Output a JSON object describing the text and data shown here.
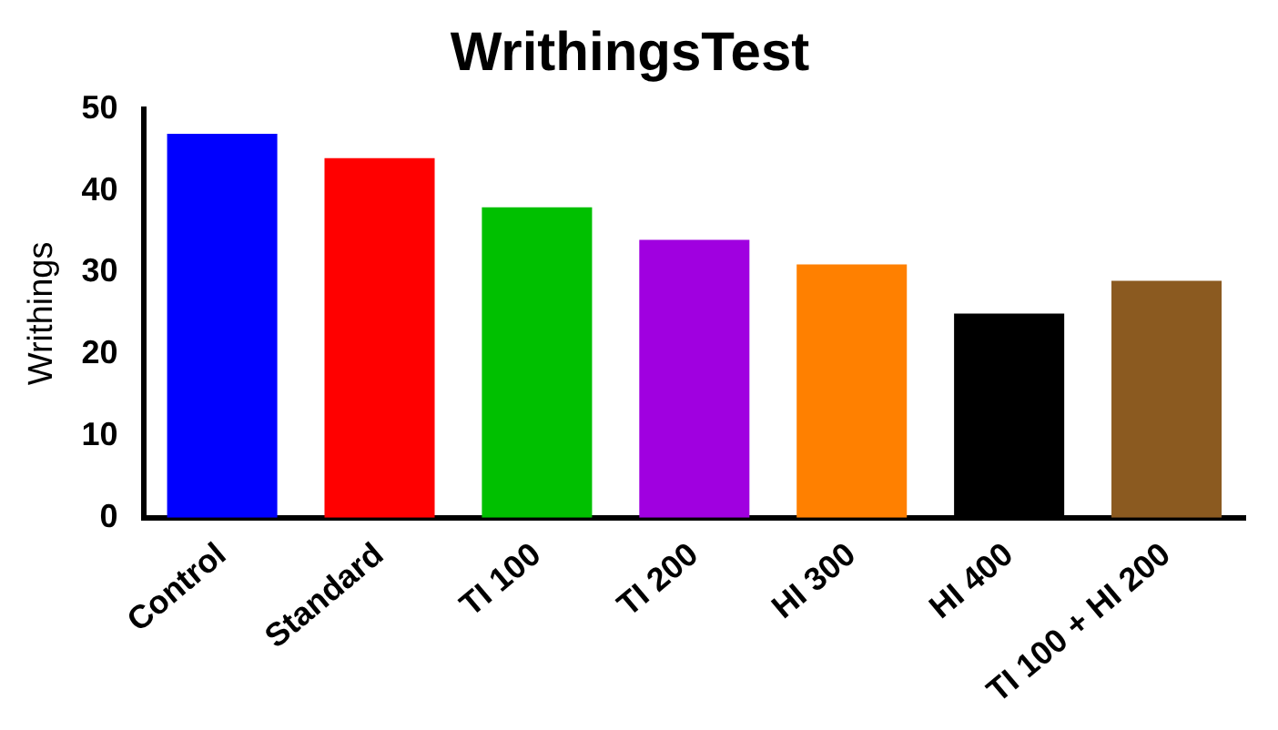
{
  "chart_data": {
    "type": "bar",
    "title": "WrithingsTest",
    "ylabel": "Writhings",
    "categories": [
      "Control",
      "Standard",
      "TI 100",
      "TI 200",
      "HI 300",
      "HI 400",
      "TI 100 + HI 200"
    ],
    "values": [
      47,
      44,
      38,
      34,
      31,
      25,
      29
    ],
    "colors": [
      "#0000ff",
      "#ff0000",
      "#00c000",
      "#a000e0",
      "#ff8000",
      "#000000",
      "#8b5a20"
    ],
    "ylim": [
      0,
      50
    ],
    "yticks": [
      0,
      10,
      20,
      30,
      40,
      50
    ],
    "grid": false,
    "legend": false
  }
}
